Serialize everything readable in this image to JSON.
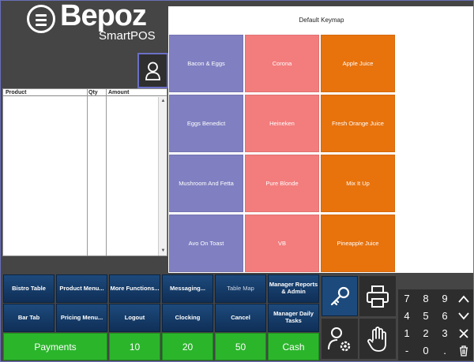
{
  "header": {
    "brand": "Bepoz",
    "sub": "SmartPOS"
  },
  "order_table": {
    "columns": [
      "Product",
      "Qty",
      "Amount"
    ]
  },
  "keymap": {
    "title": "Default Keymap",
    "keys": [
      [
        "Bacon & Eggs",
        "Corona",
        "Apple Juice"
      ],
      [
        "Eggs Benedict",
        "Heineken",
        "Fresh Orange Juice"
      ],
      [
        "Mushroom And Fetta",
        "Pure Blonde",
        "Mix It Up"
      ],
      [
        "Avo On Toast",
        "VB",
        "Pineapple Juice"
      ]
    ]
  },
  "function_buttons": {
    "row1": [
      "Bistro Table",
      "Product Menu...",
      "More Functions...",
      "Messaging...",
      "Table Map",
      "Manager Reports & Admin"
    ],
    "row2": [
      "Bar Tab",
      "Pricing Menu...",
      "Logout",
      "Clocking",
      "Cancel",
      "Manager Daily Tasks"
    ]
  },
  "payment_buttons": [
    "Payments",
    "10",
    "20",
    "50",
    "Cash"
  ],
  "numpad": [
    "7",
    "8",
    "9",
    "4",
    "5",
    "6",
    "1",
    "2",
    "3",
    "-",
    "0",
    "."
  ],
  "colors": {
    "purple": "#7f7fc1",
    "pink": "#f37c7c",
    "orange": "#e8720c",
    "green": "#2bb52b",
    "navy": "#1d4a7c"
  }
}
